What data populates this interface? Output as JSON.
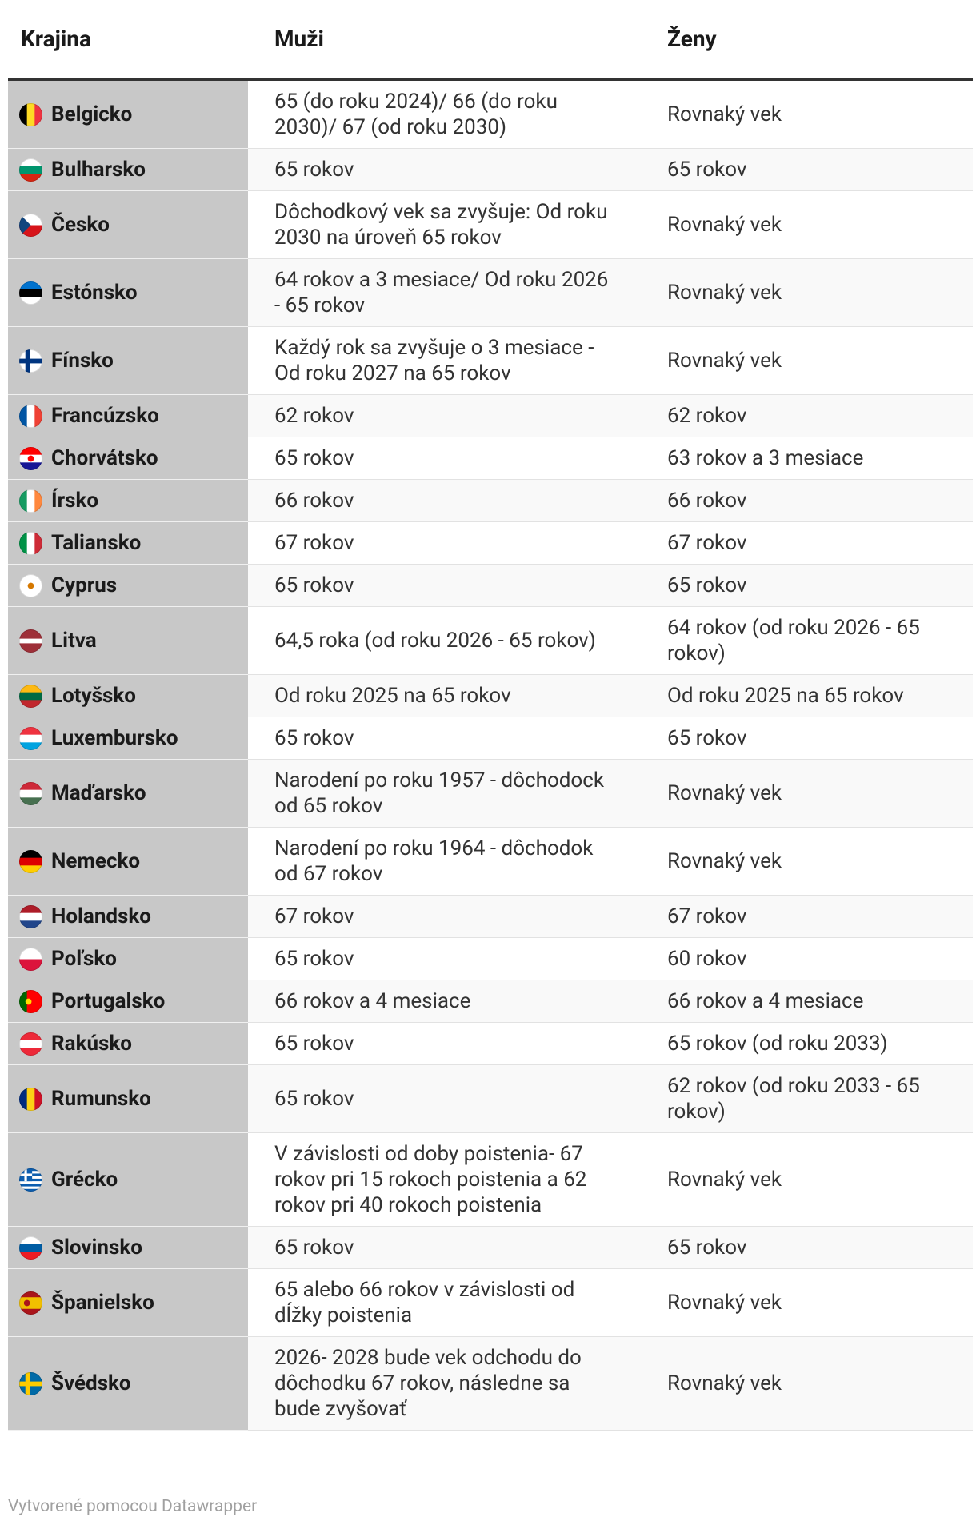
{
  "header": {
    "columns": [
      "Krajina",
      "Muži",
      "Ženy"
    ]
  },
  "table": {
    "rows": [
      [
        "Belgicko",
        "65 (do roku 2024)/ 66 (do roku 2030)/ 67 (od roku 2030)",
        "Rovnaký vek"
      ],
      [
        "Bulharsko",
        "65 rokov",
        "65 rokov"
      ],
      [
        "Česko",
        "Dôchodkový vek sa zvyšuje: Od roku 2030 na úroveň 65 rokov",
        "Rovnaký vek"
      ],
      [
        "Estónsko",
        "64 rokov a 3 mesiace/ Od roku 2026 - 65 rokov",
        "Rovnaký vek"
      ],
      [
        "Fínsko",
        "Každý rok sa zvyšuje o 3 mesiace - Od roku 2027 na 65 rokov",
        "Rovnaký vek"
      ],
      [
        "Francúzsko",
        "62 rokov",
        "62 rokov"
      ],
      [
        "Chorvátsko",
        "65 rokov",
        "63 rokov a 3 mesiace"
      ],
      [
        "Írsko",
        "66 rokov",
        "66 rokov"
      ],
      [
        "Taliansko",
        "67 rokov",
        "67 rokov"
      ],
      [
        "Cyprus",
        "65 rokov",
        "65 rokov"
      ],
      [
        "Litva",
        "64,5 roka (od roku 2026 - 65 rokov)",
        "64 rokov (od roku 2026 - 65 rokov)"
      ],
      [
        "Lotyšsko",
        "Od roku 2025 na 65 rokov",
        "Od roku 2025 na 65 rokov"
      ],
      [
        "Luxembursko",
        "65 rokov",
        "65 rokov"
      ],
      [
        "Maďarsko",
        "Narodení po roku 1957 - dôchodock od 65 rokov",
        "Rovnaký vek"
      ],
      [
        "Nemecko",
        "Narodení po roku 1964 - dôchodok od 67 rokov",
        "Rovnaký vek"
      ],
      [
        "Holandsko",
        "67 rokov",
        "67 rokov"
      ],
      [
        "Poľsko",
        "65 rokov",
        "60 rokov"
      ],
      [
        "Portugalsko",
        "66 rokov a 4 mesiace",
        "66 rokov a 4 mesiace"
      ],
      [
        "Rakúsko",
        "65 rokov",
        "65 rokov (od roku 2033)"
      ],
      [
        "Rumunsko",
        "65 rokov",
        "62 rokov (od roku 2033 - 65 rokov)"
      ],
      [
        "Grécko",
        "V závislosti od doby poistenia- 67 rokov pri 15 rokoch poistenia a 62 rokov pri 40 rokoch poistenia",
        "Rovnaký vek"
      ],
      [
        "Slovinsko",
        "65 rokov",
        "65 rokov"
      ],
      [
        "Španielsko",
        "65 alebo 66 rokov v závislosti od dĺžky poistenia",
        "Rovnaký vek"
      ],
      [
        "Švédsko",
        "2026- 2028 bude vek odchodu do dôchodku 67 rokov, následne sa bude zvyšovať",
        "Rovnaký vek"
      ]
    ]
  },
  "footer": {
    "text": "Vytvorené pomocou Datawrapper"
  }
}
